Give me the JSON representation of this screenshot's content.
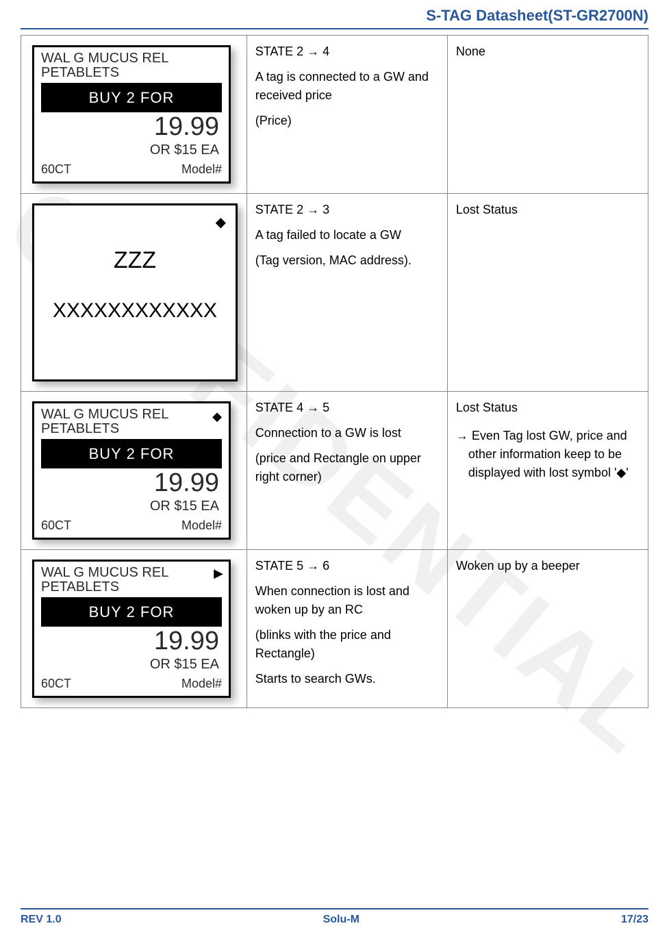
{
  "header": {
    "title": "S-TAG Datasheet(ST-GR2700N)"
  },
  "watermark": "CONFIDENTIAL",
  "colors": {
    "accent": "#2b5797",
    "border": "#888888",
    "text": "#000000"
  },
  "tag_mock": {
    "product_line1": "WAL G MUCUS REL",
    "product_line2": "PETABLETS",
    "buy_bar": "BUY 2 FOR",
    "price": "19.99",
    "ea_line": "OR $15 EA",
    "qty": "60CT",
    "model": "Model#"
  },
  "tag_lost": {
    "version": "ZZZ",
    "mac": "XXXXXXXXXXXX"
  },
  "rows": [
    {
      "state": "STATE 2 → 4",
      "desc": "A tag is connected to a GW and received price",
      "desc2": "(Price)",
      "status": "None"
    },
    {
      "state": "STATE 2 → 3",
      "desc": "A tag failed to locate a GW",
      "desc2": "(Tag version, MAC address).",
      "status": "Lost Status"
    },
    {
      "state": "STATE 4 → 5",
      "desc": "Connection to a GW is lost",
      "desc2": "(price  and Rectangle on upper right corner)",
      "status": "Lost Status",
      "status_note": "→ Even Tag lost GW, price and other information keep to be displayed with lost symbol '◆'"
    },
    {
      "state": "STATE 5 → 6",
      "desc": "When connection is lost and woken up by an RC",
      "desc2": "(blinks with the price and Rectangle)",
      "desc3": "Starts to search GWs.",
      "status": "Woken up by a beeper"
    }
  ],
  "footer": {
    "rev": "REV 1.0",
    "company": "Solu-M",
    "page": "17/23"
  }
}
